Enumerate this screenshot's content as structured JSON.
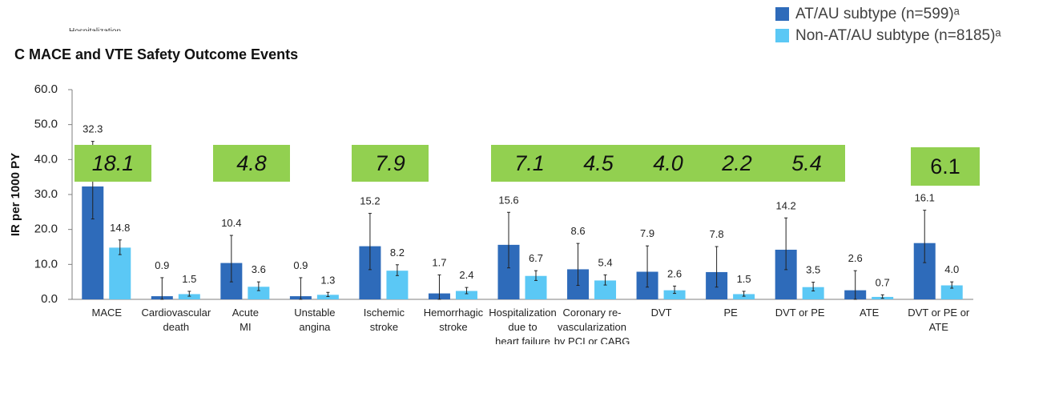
{
  "panel_title": "C  MACE and VTE Safety Outcome Events",
  "clipped_note": "Hospitalization",
  "legend": [
    {
      "label": "AT/AU subtype (n=599)ᵃ",
      "color": "#2e6bba"
    },
    {
      "label": "Non-AT/AU subtype (n=8185)ᵃ",
      "color": "#5bc8f5"
    }
  ],
  "chart_data": {
    "type": "bar",
    "title": "MACE and VTE Safety Outcome Events",
    "ylabel": "IR per 1000 PY",
    "xlabel": "",
    "ylim": [
      0,
      60
    ],
    "yticks": [
      "0.0",
      "10.0",
      "20.0",
      "30.0",
      "40.0",
      "50.0",
      "60.0"
    ],
    "grid": false,
    "error_bars": true,
    "categories": [
      [
        "MACE"
      ],
      [
        "Cardiovascular",
        "death"
      ],
      [
        "Acute",
        "MI"
      ],
      [
        "Unstable",
        "angina"
      ],
      [
        "Ischemic",
        "stroke"
      ],
      [
        "Hemorrhagic",
        "stroke"
      ],
      [
        "Hospitalization",
        "due to",
        "heart failure"
      ],
      [
        "Coronary re-",
        "vascularization",
        "by PCI or CABG"
      ],
      [
        "DVT"
      ],
      [
        "PE"
      ],
      [
        "DVT or PE"
      ],
      [
        "ATE"
      ],
      [
        "DVT or PE or",
        "ATE"
      ]
    ],
    "series": [
      {
        "name": "AT/AU subtype (n=599)",
        "color": "#2e6bba",
        "values": [
          32.3,
          0.9,
          10.4,
          0.9,
          15.2,
          1.7,
          15.6,
          8.6,
          7.9,
          7.8,
          14.2,
          2.6,
          16.1
        ],
        "labels": [
          "32.3",
          "0.9",
          "10.4",
          "0.9",
          "15.2",
          "1.7",
          "15.6",
          "8.6",
          "7.9",
          "7.8",
          "14.2",
          "2.6",
          "16.1"
        ],
        "ci_low": [
          23.0,
          0.0,
          5.0,
          0.0,
          8.5,
          0.0,
          9.0,
          4.0,
          3.5,
          3.5,
          8.5,
          0.0,
          10.5
        ],
        "ci_high": [
          45.2,
          6.2,
          18.3,
          6.2,
          24.6,
          7.0,
          24.9,
          16.0,
          15.3,
          15.1,
          23.3,
          8.2,
          25.5
        ]
      },
      {
        "name": "Non-AT/AU subtype (n=8185)",
        "color": "#5bc8f5",
        "values": [
          14.8,
          1.5,
          3.6,
          1.3,
          8.2,
          2.4,
          6.7,
          5.4,
          2.6,
          1.5,
          3.5,
          0.7,
          4.0
        ],
        "labels": [
          "14.8",
          "1.5",
          "3.6",
          "1.3",
          "8.2",
          "2.4",
          "6.7",
          "5.4",
          "2.6",
          "1.5",
          "3.5",
          "0.7",
          "4.0"
        ],
        "ci_low": [
          12.8,
          0.9,
          2.5,
          0.8,
          6.8,
          1.6,
          5.4,
          4.1,
          1.7,
          0.9,
          2.4,
          0.3,
          3.2
        ],
        "ci_high": [
          17.0,
          2.3,
          5.0,
          2.0,
          9.9,
          3.4,
          8.2,
          7.0,
          3.8,
          2.3,
          4.9,
          1.3,
          5.0
        ]
      }
    ],
    "annotations": [
      {
        "text": "18.1",
        "category_index": 0,
        "italic": true
      },
      {
        "text": "4.8",
        "category_index": 2,
        "italic": true
      },
      {
        "text": "7.9",
        "category_index": 4,
        "italic": true
      },
      {
        "text": "7.1",
        "category_index": 6,
        "italic": true
      },
      {
        "text": "4.5",
        "category_index": 7,
        "italic": true
      },
      {
        "text": "4.0",
        "category_index": 8,
        "italic": true
      },
      {
        "text": "2.2",
        "category_index": 9,
        "italic": true
      },
      {
        "text": "5.4",
        "category_index": 10,
        "italic": true
      },
      {
        "text": "6.1",
        "category_index": 12,
        "italic": false
      }
    ]
  }
}
